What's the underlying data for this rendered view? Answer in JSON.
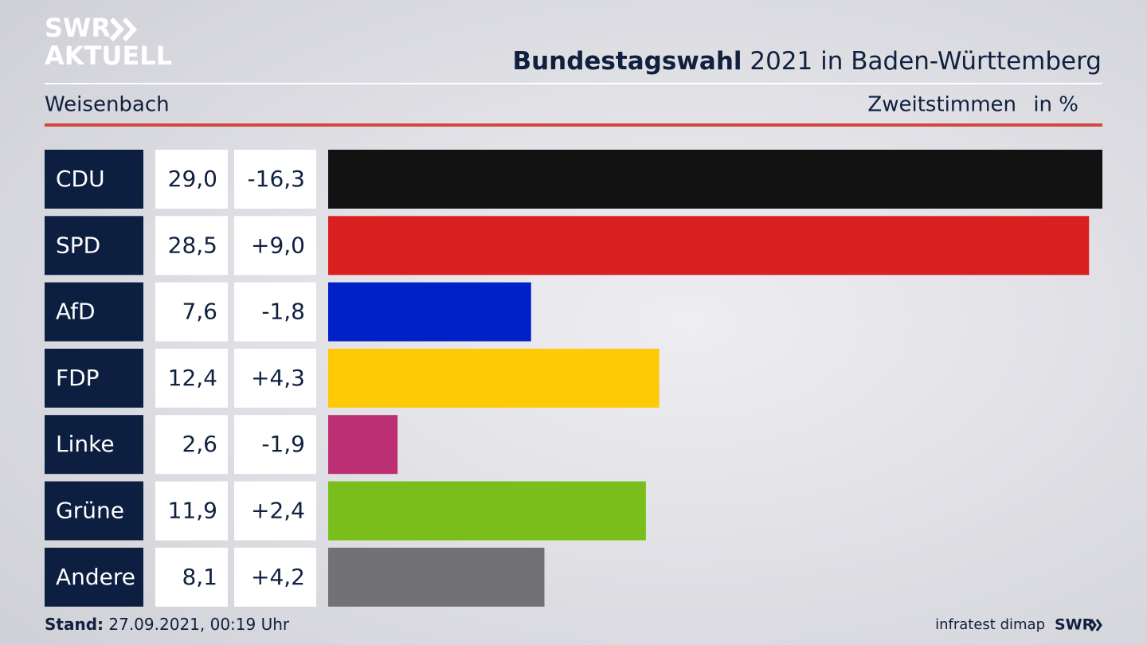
{
  "brand": {
    "line1": "SWR",
    "line2": "AKTUELL"
  },
  "footer": {
    "stand_label": "Stand:",
    "stand_value": "27.09.2021, 00:19 Uhr",
    "source": "infratest dimap",
    "logo": "SWR"
  },
  "chart_data": {
    "type": "bar",
    "title_bold": "Bundestagswahl",
    "title_rest": "2021 in Baden-Württemberg",
    "subtitle": "Weisenbach",
    "measure": "Zweitstimmen",
    "unit": "in %",
    "categories": [
      "CDU",
      "SPD",
      "AfD",
      "FDP",
      "Linke",
      "Grüne",
      "Andere"
    ],
    "values": [
      29.0,
      28.5,
      7.6,
      12.4,
      2.6,
      11.9,
      8.1
    ],
    "value_labels": [
      "29,0",
      "28,5",
      "7,6",
      "12,4",
      "2,6",
      "11,9",
      "8,1"
    ],
    "changes": {
      "values": [
        -16.3,
        9.0,
        -1.8,
        4.3,
        -1.9,
        2.4,
        4.2
      ],
      "value_labels": [
        "-16,3",
        "+9,0",
        "-1,8",
        "+4,3",
        "-1,9",
        "+2,4",
        "+4,2"
      ]
    },
    "colors": [
      "#121212",
      "#d9201f",
      "#0020c8",
      "#fdca05",
      "#bd2f73",
      "#79be1a",
      "#727274"
    ],
    "xlim": [
      0,
      29
    ]
  }
}
